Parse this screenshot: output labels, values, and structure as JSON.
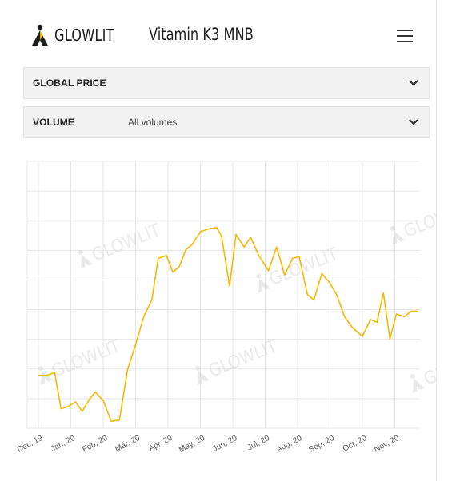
{
  "header": {
    "logo_text": "GLOWLIT",
    "product_title": "Vitamin K3 MNB",
    "menu_icon": "hamburger-menu-icon"
  },
  "filters": {
    "global_price": {
      "label": "GLOBAL PRICE",
      "icon": "chevron-down-icon"
    },
    "volume": {
      "label": "VOLUME",
      "value": "All volumes",
      "icon": "chevron-down-icon"
    }
  },
  "watermark": {
    "text": "GLOWLIT"
  },
  "colors": {
    "line": "#f5b800",
    "grid": "#e5e5e5",
    "accordion_bg": "#f2f2f2"
  },
  "chart_data": {
    "type": "line",
    "title": "",
    "xlabel": "",
    "ylabel": "",
    "grid": true,
    "legend": "none",
    "x_tick_labels": [
      "Dec, 19",
      "Jan, 20",
      "Feb, 20",
      "Mar, 20",
      "Apr, 20",
      "May, 20",
      "Jun, 20",
      "Jul, 20",
      "Aug, 20",
      "Sep, 20",
      "Oct, 20",
      "Nov, 20"
    ],
    "x_range": [
      0,
      11.7
    ],
    "y_range": [
      0,
      9
    ],
    "y_grid_lines": 9,
    "series": [
      {
        "x": [
          0,
          0.25,
          0.5,
          0.7,
          0.95,
          1.15,
          1.35,
          1.55,
          1.75,
          2.0,
          2.25,
          2.5,
          2.75,
          3.0,
          3.25,
          3.5,
          3.7,
          3.95,
          4.15,
          4.35,
          4.55,
          4.75,
          5.0,
          5.25,
          5.5,
          5.65,
          5.9,
          6.1,
          6.35,
          6.55,
          6.8,
          7.1,
          7.35,
          7.6,
          7.85,
          8.05,
          8.3,
          8.5,
          8.75,
          9.0,
          9.2,
          9.45,
          9.7,
          10.0,
          10.25,
          10.45,
          10.65,
          10.85,
          11.05,
          11.3,
          11.5,
          11.7
        ],
        "y": [
          1.9,
          1.9,
          2.0,
          0.7,
          0.8,
          0.95,
          0.6,
          1.0,
          1.3,
          1.0,
          0.25,
          0.3,
          2.1,
          3.0,
          4.0,
          4.6,
          6.1,
          6.2,
          5.6,
          5.8,
          6.4,
          6.6,
          7.05,
          7.15,
          7.2,
          6.9,
          5.1,
          6.95,
          6.5,
          6.85,
          6.2,
          5.65,
          6.5,
          5.5,
          6.1,
          6.15,
          4.8,
          4.6,
          5.55,
          5.2,
          4.8,
          4.0,
          3.6,
          3.3,
          3.9,
          3.8,
          4.85,
          3.2,
          4.1,
          4.0,
          4.2,
          4.2
        ]
      }
    ]
  }
}
